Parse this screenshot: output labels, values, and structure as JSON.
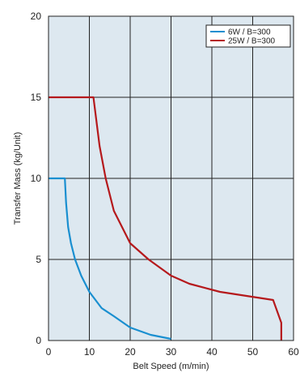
{
  "chart_data": {
    "type": "line",
    "title": "",
    "xlabel": "Belt Speed (m/min)",
    "ylabel": "Transfer Mass (kg/Unit)",
    "xlim": [
      0,
      60
    ],
    "ylim": [
      0,
      20
    ],
    "xticks": [
      "0",
      "10",
      "20",
      "30",
      "40",
      "50",
      "60"
    ],
    "yticks": [
      "0",
      "5",
      "10",
      "15",
      "20"
    ],
    "grid": true,
    "legend_position": "top-right",
    "plot_background": "#dde8f0",
    "series": [
      {
        "name": "6W / B=300",
        "color": "#1a8fd0",
        "x": [
          0,
          4,
          4.3,
          4.8,
          5.5,
          6.5,
          8,
          10,
          13,
          16,
          20,
          25,
          30
        ],
        "y": [
          10,
          10,
          8.5,
          7,
          6,
          5,
          4,
          3,
          2,
          1.5,
          0.8,
          0.35,
          0.1
        ]
      },
      {
        "name": "25W / B=300",
        "color": "#b5191c",
        "x": [
          0,
          11,
          11.5,
          12.5,
          14,
          16,
          20,
          24.5,
          30,
          34.5,
          42,
          55,
          57,
          57
        ],
        "y": [
          15,
          15,
          14,
          12,
          10,
          8,
          6,
          5,
          4,
          3.5,
          3,
          2.5,
          1.1,
          0
        ]
      }
    ]
  }
}
